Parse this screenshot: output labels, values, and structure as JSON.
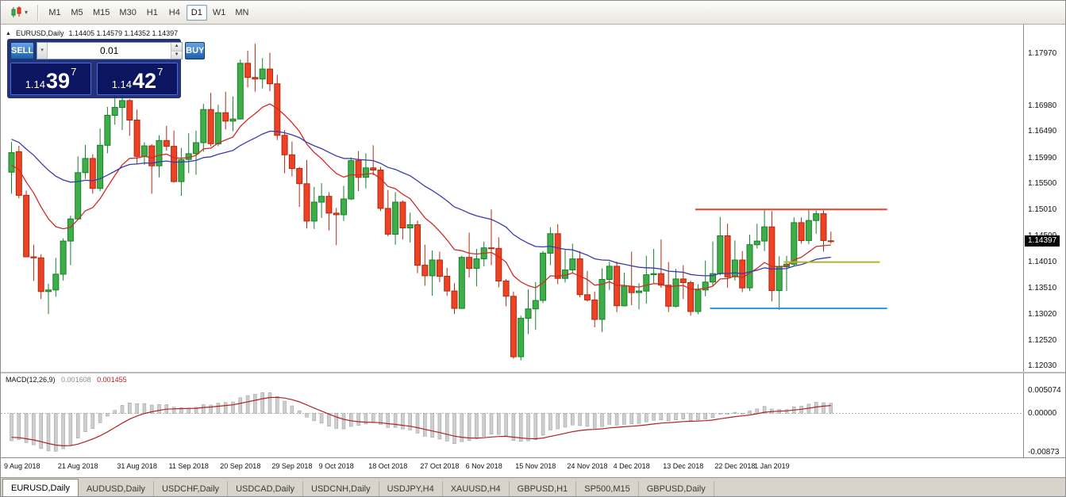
{
  "toolbar": {
    "timeframes": [
      "M1",
      "M5",
      "M15",
      "M30",
      "H1",
      "H4",
      "D1",
      "W1",
      "MN"
    ],
    "active_timeframe": "D1"
  },
  "chart_header": {
    "symbol": "EURUSD,Daily",
    "ohlc": "1.14405 1.14579 1.14352 1.14397"
  },
  "trade_panel": {
    "sell_label": "SELL",
    "buy_label": "BUY",
    "volume": "0.01",
    "sell_price": {
      "prefix": "1.14",
      "big": "39",
      "sup": "7"
    },
    "buy_price": {
      "prefix": "1.14",
      "big": "42",
      "sup": "7"
    }
  },
  "price_axis": {
    "labels": [
      "1.17970",
      "1.16980",
      "1.16490",
      "1.15990",
      "1.15500",
      "1.15010",
      "1.14500",
      "1.14010",
      "1.13510",
      "1.13020",
      "1.12520",
      "1.12030"
    ],
    "current": "1.14397"
  },
  "time_axis": {
    "labels": [
      {
        "text": "9 Aug 2018",
        "i": 1
      },
      {
        "text": "21 Aug 2018",
        "i": 9
      },
      {
        "text": "31 Aug 2018",
        "i": 17
      },
      {
        "text": "11 Sep 2018",
        "i": 24
      },
      {
        "text": "20 Sep 2018",
        "i": 31
      },
      {
        "text": "29 Sep 2018",
        "i": 38
      },
      {
        "text": "9 Oct 2018",
        "i": 44
      },
      {
        "text": "18 Oct 2018",
        "i": 51
      },
      {
        "text": "27 Oct 2018",
        "i": 58
      },
      {
        "text": "6 Nov 2018",
        "i": 64
      },
      {
        "text": "15 Nov 2018",
        "i": 71
      },
      {
        "text": "24 Nov 2018",
        "i": 78
      },
      {
        "text": "4 Dec 2018",
        "i": 84
      },
      {
        "text": "13 Dec 2018",
        "i": 91
      },
      {
        "text": "22 Dec 2018",
        "i": 98
      },
      {
        "text": "1 Jan 2019",
        "i": 103
      }
    ]
  },
  "macd_panel": {
    "label": "MACD(12,26,9)",
    "value_macd": "0.001608",
    "value_signal": "0.001455",
    "axis_labels": [
      "0.005074",
      "0.00000",
      "-0.00873"
    ]
  },
  "tabs": {
    "active": "EURUSD,Daily",
    "items": [
      "EURUSD,Daily",
      "AUDUSD,Daily",
      "USDCHF,Daily",
      "USDCAD,Daily",
      "USDCNH,Daily",
      "USDJPY,H4",
      "XAUUSD,H4",
      "GBPUSD,H1",
      "SP500,M15",
      "GBPUSD,Daily"
    ]
  },
  "chart_data": {
    "type": "candlestick",
    "symbol": "EURUSD",
    "timeframe": "Daily",
    "title": "EURUSD,Daily",
    "price_range": [
      1.1196,
      1.1844
    ],
    "colors": {
      "up": "#3fae49",
      "up_border": "#17802a",
      "down": "#ee4224",
      "down_border": "#b02a10",
      "ma_fast": "#d02a2a",
      "ma_slow": "#3a3aae",
      "macd_hist": "#cecece",
      "macd_hist_border": "#9a9a9a",
      "macd_signal": "#b22222",
      "line_resistance": "#f8392a",
      "line_mid": "#b4b428",
      "line_support": "#2f9be2"
    },
    "candles": [
      [
        1.1571,
        1.1628,
        1.153,
        1.1608
      ],
      [
        1.161,
        1.1621,
        1.1521,
        1.1527
      ],
      [
        1.1527,
        1.1536,
        1.1411,
        1.141
      ],
      [
        1.141,
        1.1433,
        1.1364,
        1.1408
      ],
      [
        1.1408,
        1.1415,
        1.133,
        1.1344
      ],
      [
        1.1344,
        1.1359,
        1.1301,
        1.1347
      ],
      [
        1.1347,
        1.1408,
        1.1334,
        1.1377
      ],
      [
        1.1377,
        1.1445,
        1.1365,
        1.144
      ],
      [
        1.144,
        1.1488,
        1.1394,
        1.1482
      ],
      [
        1.1482,
        1.1601,
        1.1481,
        1.157
      ],
      [
        1.157,
        1.1623,
        1.1558,
        1.1597
      ],
      [
        1.1597,
        1.1605,
        1.153,
        1.154
      ],
      [
        1.154,
        1.1654,
        1.1535,
        1.1622
      ],
      [
        1.1622,
        1.1695,
        1.1607,
        1.1679
      ],
      [
        1.1679,
        1.1734,
        1.1661,
        1.1694
      ],
      [
        1.1694,
        1.1717,
        1.1651,
        1.1707
      ],
      [
        1.1707,
        1.171,
        1.164,
        1.167
      ],
      [
        1.167,
        1.169,
        1.1586,
        1.1601
      ],
      [
        1.1601,
        1.1628,
        1.1585,
        1.1621
      ],
      [
        1.1621,
        1.1624,
        1.153,
        1.1583
      ],
      [
        1.1583,
        1.1641,
        1.1561,
        1.1631
      ],
      [
        1.1631,
        1.1659,
        1.1612,
        1.162
      ],
      [
        1.162,
        1.165,
        1.1551,
        1.1553
      ],
      [
        1.1553,
        1.1617,
        1.1526,
        1.1595
      ],
      [
        1.1595,
        1.1645,
        1.1569,
        1.1606
      ],
      [
        1.1606,
        1.165,
        1.1566,
        1.1627
      ],
      [
        1.1627,
        1.1701,
        1.161,
        1.169
      ],
      [
        1.169,
        1.1722,
        1.162,
        1.1625
      ],
      [
        1.1625,
        1.1699,
        1.162,
        1.1684
      ],
      [
        1.1684,
        1.1724,
        1.1652,
        1.1668
      ],
      [
        1.1668,
        1.1715,
        1.1649,
        1.1672
      ],
      [
        1.1672,
        1.1785,
        1.1671,
        1.1778
      ],
      [
        1.1778,
        1.1802,
        1.1732,
        1.1751
      ],
      [
        1.1751,
        1.1815,
        1.1724,
        1.1748
      ],
      [
        1.1748,
        1.1788,
        1.173,
        1.1767
      ],
      [
        1.1767,
        1.1798,
        1.1725,
        1.1739
      ],
      [
        1.1739,
        1.1756,
        1.1632,
        1.1641
      ],
      [
        1.1641,
        1.1651,
        1.1569,
        1.1604
      ],
      [
        1.1604,
        1.1629,
        1.1563,
        1.1578
      ],
      [
        1.1578,
        1.1581,
        1.1505,
        1.1549
      ],
      [
        1.1549,
        1.1594,
        1.1464,
        1.1478
      ],
      [
        1.1478,
        1.1543,
        1.1463,
        1.1514
      ],
      [
        1.1514,
        1.155,
        1.1484,
        1.1525
      ],
      [
        1.1525,
        1.1533,
        1.146,
        1.1493
      ],
      [
        1.1493,
        1.1503,
        1.1432,
        1.149
      ],
      [
        1.149,
        1.1545,
        1.1478,
        1.152
      ],
      [
        1.152,
        1.1599,
        1.1518,
        1.1593
      ],
      [
        1.1593,
        1.1611,
        1.1535,
        1.1561
      ],
      [
        1.1561,
        1.1607,
        1.154,
        1.1579
      ],
      [
        1.1579,
        1.1622,
        1.1565,
        1.1575
      ],
      [
        1.1575,
        1.1581,
        1.1497,
        1.1502
      ],
      [
        1.1502,
        1.1537,
        1.1449,
        1.1453
      ],
      [
        1.1453,
        1.1533,
        1.1433,
        1.1514
      ],
      [
        1.1514,
        1.1517,
        1.1443,
        1.1465
      ],
      [
        1.1465,
        1.1494,
        1.1437,
        1.1471
      ],
      [
        1.1471,
        1.1479,
        1.1379,
        1.1394
      ],
      [
        1.1394,
        1.1433,
        1.1355,
        1.1374
      ],
      [
        1.1374,
        1.1422,
        1.1336,
        1.1404
      ],
      [
        1.1404,
        1.142,
        1.1362,
        1.1373
      ],
      [
        1.1373,
        1.1389,
        1.1336,
        1.1345
      ],
      [
        1.1345,
        1.136,
        1.1301,
        1.1312
      ],
      [
        1.1312,
        1.1412,
        1.1311,
        1.1409
      ],
      [
        1.1409,
        1.1456,
        1.1371,
        1.1388
      ],
      [
        1.1388,
        1.1425,
        1.1354,
        1.1406
      ],
      [
        1.1406,
        1.1439,
        1.1392,
        1.1427
      ],
      [
        1.1427,
        1.15,
        1.1394,
        1.1426
      ],
      [
        1.1426,
        1.1447,
        1.1352,
        1.1364
      ],
      [
        1.1364,
        1.1368,
        1.1316,
        1.1335
      ],
      [
        1.1335,
        1.1344,
        1.1216,
        1.122
      ],
      [
        1.122,
        1.1298,
        1.1213,
        1.1293
      ],
      [
        1.1293,
        1.1348,
        1.1263,
        1.1311
      ],
      [
        1.1311,
        1.1362,
        1.1271,
        1.1327
      ],
      [
        1.1327,
        1.1421,
        1.1322,
        1.1417
      ],
      [
        1.1417,
        1.1466,
        1.1394,
        1.1454
      ],
      [
        1.1454,
        1.1472,
        1.1358,
        1.1369
      ],
      [
        1.1369,
        1.1425,
        1.1361,
        1.1385
      ],
      [
        1.1385,
        1.1435,
        1.1378,
        1.1406
      ],
      [
        1.1406,
        1.1421,
        1.1333,
        1.1338
      ],
      [
        1.1338,
        1.1383,
        1.1325,
        1.1328
      ],
      [
        1.1328,
        1.1344,
        1.1276,
        1.1291
      ],
      [
        1.1291,
        1.1388,
        1.1267,
        1.1367
      ],
      [
        1.1367,
        1.1401,
        1.1347,
        1.1392
      ],
      [
        1.1392,
        1.1401,
        1.1305,
        1.1317
      ],
      [
        1.1317,
        1.138,
        1.1316,
        1.1354
      ],
      [
        1.1354,
        1.142,
        1.1318,
        1.1342
      ],
      [
        1.1342,
        1.136,
        1.131,
        1.1345
      ],
      [
        1.1345,
        1.1412,
        1.1321,
        1.1376
      ],
      [
        1.1376,
        1.1425,
        1.136,
        1.1378
      ],
      [
        1.1378,
        1.1443,
        1.1351,
        1.1356
      ],
      [
        1.1356,
        1.14,
        1.1305,
        1.1316
      ],
      [
        1.1316,
        1.1387,
        1.1314,
        1.1368
      ],
      [
        1.1368,
        1.1394,
        1.133,
        1.1361
      ],
      [
        1.1361,
        1.1365,
        1.1298,
        1.1306
      ],
      [
        1.1306,
        1.1358,
        1.1301,
        1.1347
      ],
      [
        1.1347,
        1.1403,
        1.1335,
        1.1362
      ],
      [
        1.1362,
        1.1439,
        1.1355,
        1.1378
      ],
      [
        1.1378,
        1.1486,
        1.1375,
        1.145
      ],
      [
        1.145,
        1.1473,
        1.1351,
        1.1372
      ],
      [
        1.1372,
        1.1441,
        1.1365,
        1.1404
      ],
      [
        1.1404,
        1.1421,
        1.1343,
        1.1351
      ],
      [
        1.1351,
        1.1452,
        1.1345,
        1.1433
      ],
      [
        1.1433,
        1.1473,
        1.1426,
        1.144
      ],
      [
        1.144,
        1.1499,
        1.1421,
        1.1467
      ],
      [
        1.1467,
        1.1497,
        1.1325,
        1.1346
      ],
      [
        1.1346,
        1.1411,
        1.1309,
        1.1391
      ],
      [
        1.1391,
        1.1412,
        1.1345,
        1.1396
      ],
      [
        1.1396,
        1.1485,
        1.1392,
        1.1475
      ],
      [
        1.1475,
        1.1485,
        1.1435,
        1.1441
      ],
      [
        1.1441,
        1.15,
        1.1434,
        1.1479
      ],
      [
        1.1479,
        1.1498,
        1.1454,
        1.1492
      ],
      [
        1.1492,
        1.1498,
        1.142,
        1.1441
      ],
      [
        1.14405,
        1.14579,
        1.14352,
        1.14397
      ]
    ],
    "moving_averages": [
      {
        "period": 13,
        "seed": 1.158,
        "color": "#d02a2a"
      },
      {
        "period": 34,
        "seed": 1.1635,
        "color": "#3a3aae"
      }
    ],
    "lines": [
      {
        "price": 1.15,
        "from": 93,
        "to": 119,
        "color": "#f8392a"
      },
      {
        "price": 1.14,
        "from": 105,
        "to": 118,
        "color": "#b4b428"
      },
      {
        "price": 1.1312,
        "from": 95,
        "to": 119,
        "color": "#2f9be2"
      }
    ],
    "macd": {
      "fast": 12,
      "slow": 26,
      "signal_period": 9,
      "seed_fast": 1.154,
      "seed_slow": 1.161,
      "seed_signal": -0.005,
      "range": [
        -0.0092,
        0.0073
      ],
      "current_macd": 0.001608,
      "current_signal": 0.001455
    }
  }
}
